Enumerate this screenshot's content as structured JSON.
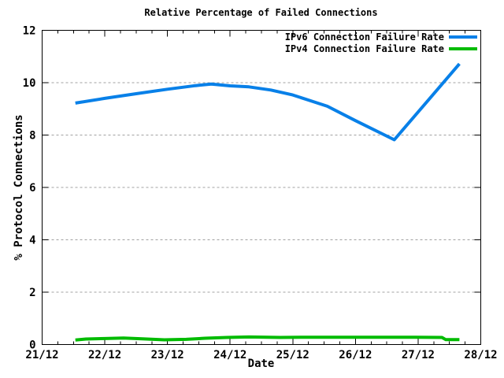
{
  "chart_data": {
    "type": "line",
    "title": "Relative Percentage of Failed Connections",
    "xlabel": "Date",
    "ylabel": "% Protocol Connections",
    "x_tick_labels": [
      "21/12",
      "22/12",
      "23/12",
      "24/12",
      "25/12",
      "26/12",
      "27/12",
      "28/12"
    ],
    "x_range_days": [
      0,
      7
    ],
    "x_minor_step_days": 0.25,
    "y_ticks": [
      0,
      2,
      4,
      6,
      8,
      10,
      12
    ],
    "ylim": [
      0,
      12
    ],
    "grid_y": [
      2,
      4,
      6,
      8,
      10
    ],
    "grid_style": "horizontal dotted lines at major y ticks, no vertical gridlines",
    "legend_position": "top-right inside plot, labels right-aligned with line samples",
    "colors": {
      "axis": "#000000",
      "grid": "#a0a0a0",
      "background": "#ffffff"
    },
    "x_unit": "days after 21/12 00:00",
    "series": [
      {
        "name": "IPv6 Connection Failure Rate",
        "color": "#0880e8",
        "points": [
          [
            0.53,
            9.22
          ],
          [
            1.0,
            9.4
          ],
          [
            1.5,
            9.58
          ],
          [
            2.0,
            9.75
          ],
          [
            2.45,
            9.89
          ],
          [
            2.7,
            9.95
          ],
          [
            3.0,
            9.88
          ],
          [
            3.3,
            9.84
          ],
          [
            3.65,
            9.72
          ],
          [
            4.0,
            9.53
          ],
          [
            4.55,
            9.1
          ],
          [
            5.0,
            8.55
          ],
          [
            5.62,
            7.82
          ],
          [
            6.66,
            10.72
          ]
        ]
      },
      {
        "name": "IPv4 Connection Failure Rate",
        "color": "#00bb00",
        "points": [
          [
            0.53,
            0.17
          ],
          [
            0.7,
            0.21
          ],
          [
            1.0,
            0.23
          ],
          [
            1.3,
            0.25
          ],
          [
            1.6,
            0.22
          ],
          [
            1.95,
            0.18
          ],
          [
            2.3,
            0.2
          ],
          [
            2.6,
            0.24
          ],
          [
            2.95,
            0.27
          ],
          [
            3.3,
            0.29
          ],
          [
            3.8,
            0.27
          ],
          [
            4.3,
            0.28
          ],
          [
            4.9,
            0.28
          ],
          [
            5.5,
            0.28
          ],
          [
            5.95,
            0.28
          ],
          [
            6.38,
            0.27
          ],
          [
            6.44,
            0.19
          ],
          [
            6.66,
            0.19
          ]
        ]
      }
    ]
  }
}
